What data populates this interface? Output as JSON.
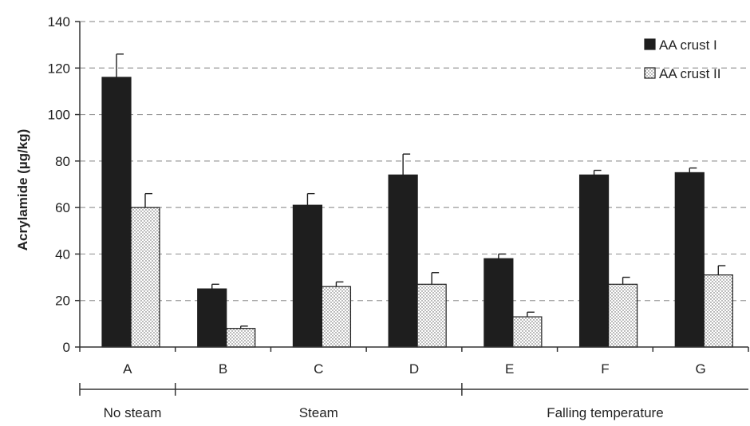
{
  "chart_data": {
    "type": "bar",
    "title": "",
    "xlabel": "",
    "ylabel": "Acrylamide (µg/kg)",
    "ylim": [
      0,
      140
    ],
    "yticks": [
      0,
      20,
      40,
      60,
      80,
      100,
      120,
      140
    ],
    "grid": "horizontal dashed",
    "legend_position": "top-right",
    "categories": [
      "A",
      "B",
      "C",
      "D",
      "E",
      "F",
      "G"
    ],
    "series": [
      {
        "name": "AA crust I",
        "color": "#1e1e1e",
        "fill": "solid",
        "values": [
          116,
          25,
          61,
          74,
          38,
          74,
          75
        ],
        "errors": [
          10,
          2,
          5,
          9,
          2,
          2,
          2
        ]
      },
      {
        "name": "AA crust II",
        "color": "#ffffff",
        "fill": "dotted",
        "values": [
          60,
          8,
          26,
          27,
          13,
          27,
          31
        ],
        "errors": [
          6,
          1,
          2,
          5,
          2,
          3,
          4
        ]
      }
    ],
    "groups": [
      {
        "label": "No steam",
        "from": "A",
        "to": "A"
      },
      {
        "label": "Steam",
        "from": "B",
        "to": "D"
      },
      {
        "label": "Falling temperature",
        "from": "E",
        "to": "G"
      }
    ]
  }
}
